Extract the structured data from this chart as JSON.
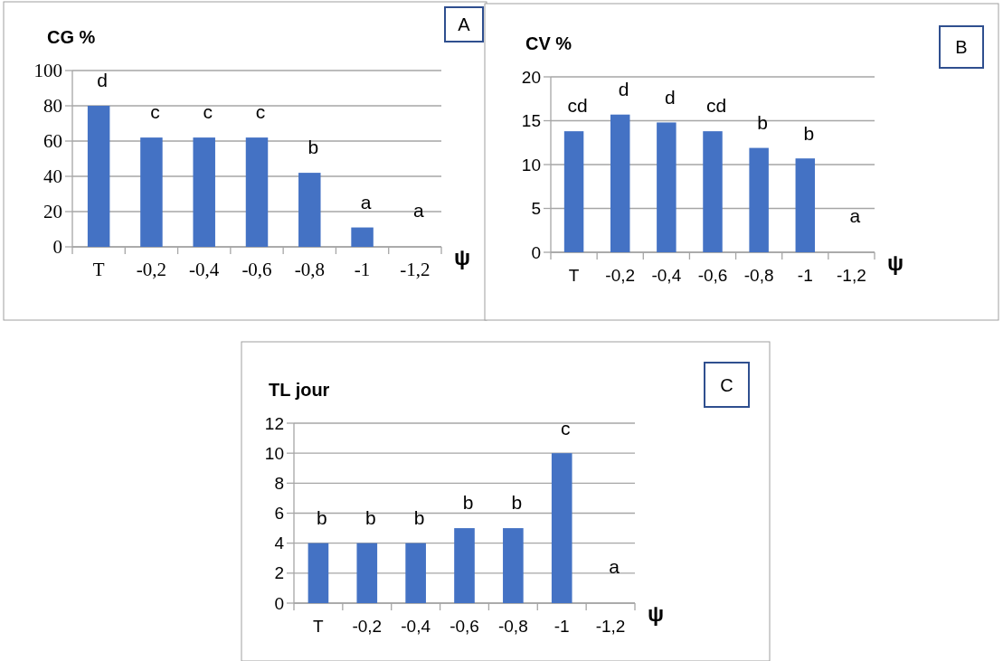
{
  "chart_data": [
    {
      "type": "bar",
      "ylabel": "CG %",
      "xlabel": "ψ",
      "categories": [
        "T",
        "-0,2",
        "-0,4",
        "-0,6",
        "-0,8",
        "-1",
        "-1,2"
      ],
      "values": [
        80,
        62,
        62,
        62,
        42,
        11,
        0
      ],
      "color": "#4472c4",
      "ylim": [
        0,
        100
      ],
      "yticks": [
        0,
        20,
        40,
        60,
        80,
        100
      ],
      "grid": "y",
      "annotations": [
        "A",
        "d",
        "c",
        "c",
        "c",
        "b",
        "a",
        "a"
      ]
    },
    {
      "type": "bar",
      "ylabel": "CV %",
      "xlabel": "ψ",
      "categories": [
        "T",
        "-0,2",
        "-0,4",
        "-0,6",
        "-0,8",
        "-1",
        "-1,2"
      ],
      "values": [
        13.8,
        15.7,
        14.8,
        13.8,
        11.9,
        10.7,
        0
      ],
      "color": "#4472c4",
      "ylim": [
        0,
        20
      ],
      "yticks": [
        0,
        5,
        10,
        15,
        20
      ],
      "grid": "y",
      "annotations": [
        "B",
        "cd",
        "d",
        "d",
        "cd",
        "b",
        "b",
        "a"
      ]
    },
    {
      "type": "bar",
      "ylabel": "TL jour",
      "xlabel": "ψ",
      "categories": [
        "T",
        "-0,2",
        "-0,4",
        "-0,6",
        "-0,8",
        "-1",
        "-1,2"
      ],
      "values": [
        4,
        4,
        4,
        5,
        5,
        10,
        0
      ],
      "color": "#4472c4",
      "ylim": [
        0,
        12
      ],
      "yticks": [
        0,
        2,
        4,
        6,
        8,
        10,
        12
      ],
      "grid": "y",
      "annotations": [
        "C",
        "b",
        "b",
        "b",
        "b",
        "b",
        "c",
        "a"
      ]
    }
  ]
}
